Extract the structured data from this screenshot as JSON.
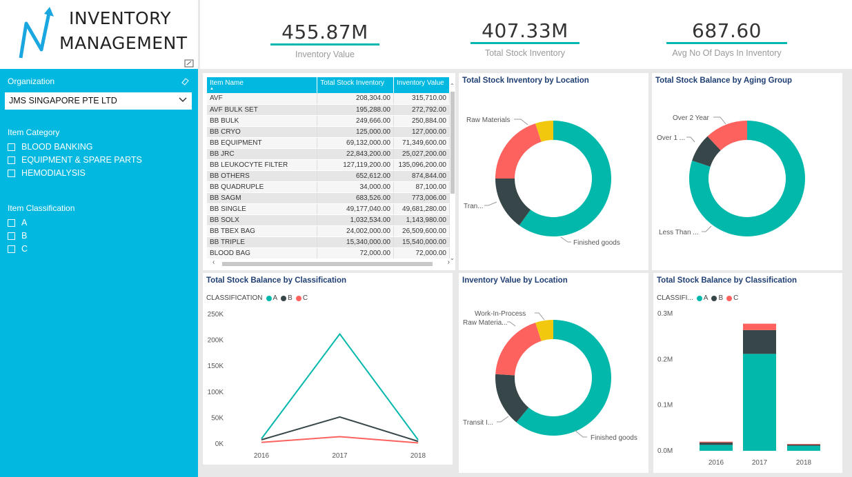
{
  "app": {
    "title_line1": "INVENTORY",
    "title_line2": "MANAGEMENT"
  },
  "colors": {
    "teal": "#01b8aa",
    "dark": "#374649",
    "red": "#fd625e",
    "yellow": "#f2c80f",
    "accent": "#00b8e0",
    "title": "#1f3f73"
  },
  "filters": {
    "organization": {
      "label": "Organization",
      "value": "JMS SINGAPORE PTE LTD"
    },
    "item_category": {
      "label": "Item Category",
      "options": [
        "BLOOD BANKING",
        "EQUIPMENT & SPARE PARTS",
        "HEMODIALYSIS"
      ]
    },
    "item_classification": {
      "label": "Item Classification",
      "options": [
        "A",
        "B",
        "C"
      ]
    }
  },
  "kpis": [
    {
      "value": "455.87M",
      "label": "Inventory Value"
    },
    {
      "value": "407.33M",
      "label": "Total Stock Inventory"
    },
    {
      "value": "687.60",
      "label": "Avg No Of Days In Inventory"
    }
  ],
  "table": {
    "headers": [
      "Item Name",
      "Total Stock Inventory",
      "Inventory Value"
    ],
    "rows": [
      [
        "AVF",
        "208,304.00",
        "315,710.00"
      ],
      [
        "AVF BULK SET",
        "195,288.00",
        "272,792.00"
      ],
      [
        "BB BULK",
        "249,666.00",
        "250,884.00"
      ],
      [
        "BB CRYO",
        "125,000.00",
        "127,000.00"
      ],
      [
        "BB EQUIPMENT",
        "69,132,000.00",
        "71,349,600.00"
      ],
      [
        "BB JRC",
        "22,843,200.00",
        "25,027,200.00"
      ],
      [
        "BB LEUKOCYTE FILTER",
        "127,119,200.00",
        "135,096,200.00"
      ],
      [
        "BB OTHERS",
        "652,612.00",
        "874,844.00"
      ],
      [
        "BB QUADRUPLE",
        "34,000.00",
        "87,100.00"
      ],
      [
        "BB SAGM",
        "683,526.00",
        "773,006.00"
      ],
      [
        "BB SINGLE",
        "49,177,040.00",
        "49,681,280.00"
      ],
      [
        "BB SOLX",
        "1,032,534.00",
        "1,143,980.00"
      ],
      [
        "BB TBEX BAG",
        "24,002,000.00",
        "26,509,600.00"
      ],
      [
        "BB TRIPLE",
        "15,340,000.00",
        "15,540,000.00"
      ],
      [
        "BLOOD BAG",
        "72,000.00",
        "72,000.00"
      ]
    ]
  },
  "chart_data": [
    {
      "type": "pie",
      "title": "Total Stock Inventory by Location",
      "labels": [
        "Finished goods",
        "Tran...",
        "Raw Materials",
        ""
      ],
      "values": [
        0.6,
        0.15,
        0.2,
        0.05
      ]
    },
    {
      "type": "pie",
      "title": "Total Stock Balance by Aging Group",
      "labels": [
        "Less Than ...",
        "Over 1 ...",
        "Over 2 Year"
      ],
      "values": [
        0.8,
        0.08,
        0.12
      ]
    },
    {
      "type": "line",
      "title": "Total Stock Balance by Classification",
      "legend_title": "CLASSIFICATION",
      "x": [
        "2016",
        "2017",
        "2018"
      ],
      "y_ticks": [
        "0K",
        "50K",
        "100K",
        "150K",
        "200K",
        "250K"
      ],
      "ylim": [
        0,
        250000
      ],
      "series": [
        {
          "name": "A",
          "values": [
            10000,
            212000,
            8000
          ]
        },
        {
          "name": "B",
          "values": [
            8000,
            52000,
            5000
          ]
        },
        {
          "name": "C",
          "values": [
            3000,
            14000,
            2000
          ]
        }
      ]
    },
    {
      "type": "pie",
      "title": "Inventory Value by Location",
      "labels": [
        "Finished goods",
        "Transit I...",
        "Raw Materia...",
        "Work-In-Process"
      ],
      "values": [
        0.61,
        0.15,
        0.19,
        0.05
      ]
    },
    {
      "type": "bar",
      "title": "Total Stock Balance by Classification",
      "legend_title": "CLASSIFI...",
      "categories": [
        "2016",
        "2017",
        "2018"
      ],
      "y_ticks": [
        "0.0M",
        "0.1M",
        "0.2M",
        "0.3M"
      ],
      "ylim": [
        0,
        0.3
      ],
      "series": [
        {
          "name": "A",
          "values": [
            0.013,
            0.212,
            0.011
          ]
        },
        {
          "name": "B",
          "values": [
            0.005,
            0.052,
            0.003
          ]
        },
        {
          "name": "C",
          "values": [
            0.002,
            0.014,
            0.001
          ]
        }
      ]
    }
  ]
}
